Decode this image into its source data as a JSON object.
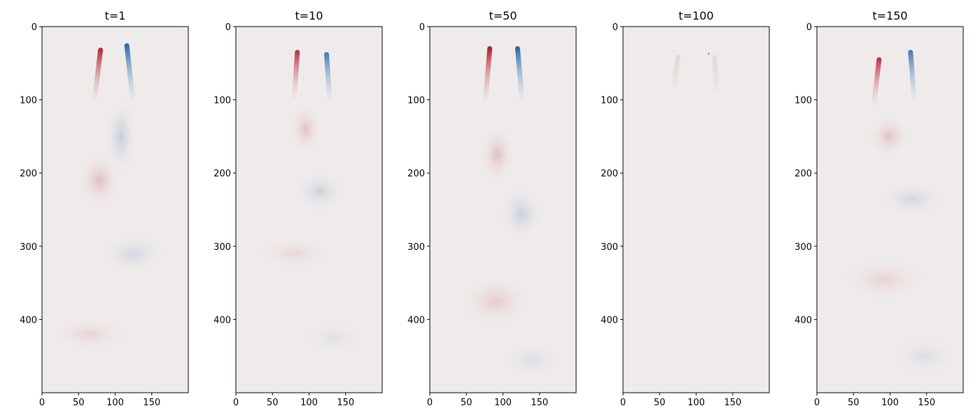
{
  "chart_data": [
    {
      "type": "heatmap",
      "title": "t=1",
      "colormap": "diverging red-white-blue (RdBu)",
      "xlim": [
        0,
        200
      ],
      "ylim": [
        500,
        0
      ],
      "xticks": [
        0,
        50,
        100,
        150
      ],
      "yticks": [
        0,
        100,
        200,
        300,
        400
      ],
      "features": [
        {
          "kind": "strip",
          "sign": 1,
          "x1": 80,
          "y1": 32,
          "x2": 72,
          "y2": 100,
          "strength": 0.9
        },
        {
          "kind": "strip",
          "sign": -1,
          "x1": 116,
          "y1": 26,
          "x2": 124,
          "y2": 100,
          "strength": 0.95
        },
        {
          "kind": "blob",
          "sign": -1,
          "x": 108,
          "y": 150,
          "rx": 22,
          "ry": 55,
          "strength": 0.22
        },
        {
          "kind": "blob",
          "sign": 1,
          "x": 78,
          "y": 210,
          "rx": 30,
          "ry": 38,
          "strength": 0.22
        },
        {
          "kind": "blob",
          "sign": -1,
          "x": 125,
          "y": 310,
          "rx": 48,
          "ry": 28,
          "strength": 0.15
        },
        {
          "kind": "blob",
          "sign": 1,
          "x": 65,
          "y": 420,
          "rx": 55,
          "ry": 22,
          "strength": 0.12
        }
      ]
    },
    {
      "type": "heatmap",
      "title": "t=10",
      "colormap": "diverging red-white-blue (RdBu)",
      "xlim": [
        0,
        200
      ],
      "ylim": [
        500,
        0
      ],
      "xticks": [
        0,
        50,
        100,
        150
      ],
      "yticks": [
        0,
        100,
        200,
        300,
        400
      ],
      "features": [
        {
          "kind": "strip",
          "sign": 1,
          "x1": 84,
          "y1": 35,
          "x2": 80,
          "y2": 95,
          "strength": 0.85
        },
        {
          "kind": "strip",
          "sign": -1,
          "x1": 124,
          "y1": 38,
          "x2": 128,
          "y2": 100,
          "strength": 0.8
        },
        {
          "kind": "blob",
          "sign": 1,
          "x": 95,
          "y": 140,
          "rx": 22,
          "ry": 35,
          "strength": 0.2
        },
        {
          "kind": "blob",
          "sign": -1,
          "x": 115,
          "y": 225,
          "rx": 35,
          "ry": 30,
          "strength": 0.18
        },
        {
          "kind": "blob",
          "sign": 1,
          "x": 80,
          "y": 310,
          "rx": 55,
          "ry": 22,
          "strength": 0.1
        },
        {
          "kind": "blob",
          "sign": -1,
          "x": 135,
          "y": 425,
          "rx": 45,
          "ry": 25,
          "strength": 0.08
        }
      ]
    },
    {
      "type": "heatmap",
      "title": "t=50",
      "colormap": "diverging red-white-blue (RdBu)",
      "xlim": [
        0,
        200
      ],
      "ylim": [
        500,
        0
      ],
      "xticks": [
        0,
        50,
        100,
        150
      ],
      "yticks": [
        0,
        100,
        200,
        300,
        400
      ],
      "features": [
        {
          "kind": "strip",
          "sign": 1,
          "x1": 82,
          "y1": 30,
          "x2": 76,
          "y2": 100,
          "strength": 0.95
        },
        {
          "kind": "strip",
          "sign": -1,
          "x1": 120,
          "y1": 30,
          "x2": 126,
          "y2": 100,
          "strength": 0.95
        },
        {
          "kind": "blob",
          "sign": 1,
          "x": 92,
          "y": 175,
          "rx": 24,
          "ry": 40,
          "strength": 0.22
        },
        {
          "kind": "blob",
          "sign": -1,
          "x": 125,
          "y": 255,
          "rx": 30,
          "ry": 38,
          "strength": 0.2
        },
        {
          "kind": "blob",
          "sign": 1,
          "x": 90,
          "y": 375,
          "rx": 50,
          "ry": 35,
          "strength": 0.15
        },
        {
          "kind": "blob",
          "sign": -1,
          "x": 140,
          "y": 455,
          "rx": 45,
          "ry": 28,
          "strength": 0.1
        }
      ]
    },
    {
      "type": "heatmap",
      "title": "t=100",
      "colormap": "diverging red-white-blue (RdBu)",
      "xlim": [
        0,
        200
      ],
      "ylim": [
        500,
        0
      ],
      "xticks": [
        0,
        50,
        100,
        150
      ],
      "yticks": [
        0,
        100,
        200,
        300,
        400
      ],
      "features": [
        {
          "kind": "blob",
          "sign": -1,
          "x": 117,
          "y": 37,
          "rx": 2,
          "ry": 3,
          "strength": 0.9
        },
        {
          "kind": "strip",
          "sign": 1,
          "x1": 75,
          "y1": 42,
          "x2": 70,
          "y2": 80,
          "strength": 0.1
        },
        {
          "kind": "strip",
          "sign": -1,
          "x1": 125,
          "y1": 42,
          "x2": 128,
          "y2": 85,
          "strength": 0.1
        }
      ]
    },
    {
      "type": "heatmap",
      "title": "t=150",
      "colormap": "diverging red-white-blue (RdBu)",
      "xlim": [
        0,
        200
      ],
      "ylim": [
        500,
        0
      ],
      "xticks": [
        0,
        50,
        100,
        150
      ],
      "yticks": [
        0,
        100,
        200,
        300,
        400
      ],
      "features": [
        {
          "kind": "strip",
          "sign": 1,
          "x1": 85,
          "y1": 45,
          "x2": 78,
          "y2": 105,
          "strength": 0.85
        },
        {
          "kind": "strip",
          "sign": -1,
          "x1": 128,
          "y1": 35,
          "x2": 133,
          "y2": 100,
          "strength": 0.8
        },
        {
          "kind": "blob",
          "sign": 1,
          "x": 98,
          "y": 150,
          "rx": 28,
          "ry": 30,
          "strength": 0.2
        },
        {
          "kind": "blob",
          "sign": -1,
          "x": 130,
          "y": 235,
          "rx": 45,
          "ry": 25,
          "strength": 0.15
        },
        {
          "kind": "blob",
          "sign": 1,
          "x": 92,
          "y": 345,
          "rx": 60,
          "ry": 30,
          "strength": 0.12
        },
        {
          "kind": "blob",
          "sign": -1,
          "x": 148,
          "y": 450,
          "rx": 45,
          "ry": 30,
          "strength": 0.1
        }
      ]
    }
  ]
}
